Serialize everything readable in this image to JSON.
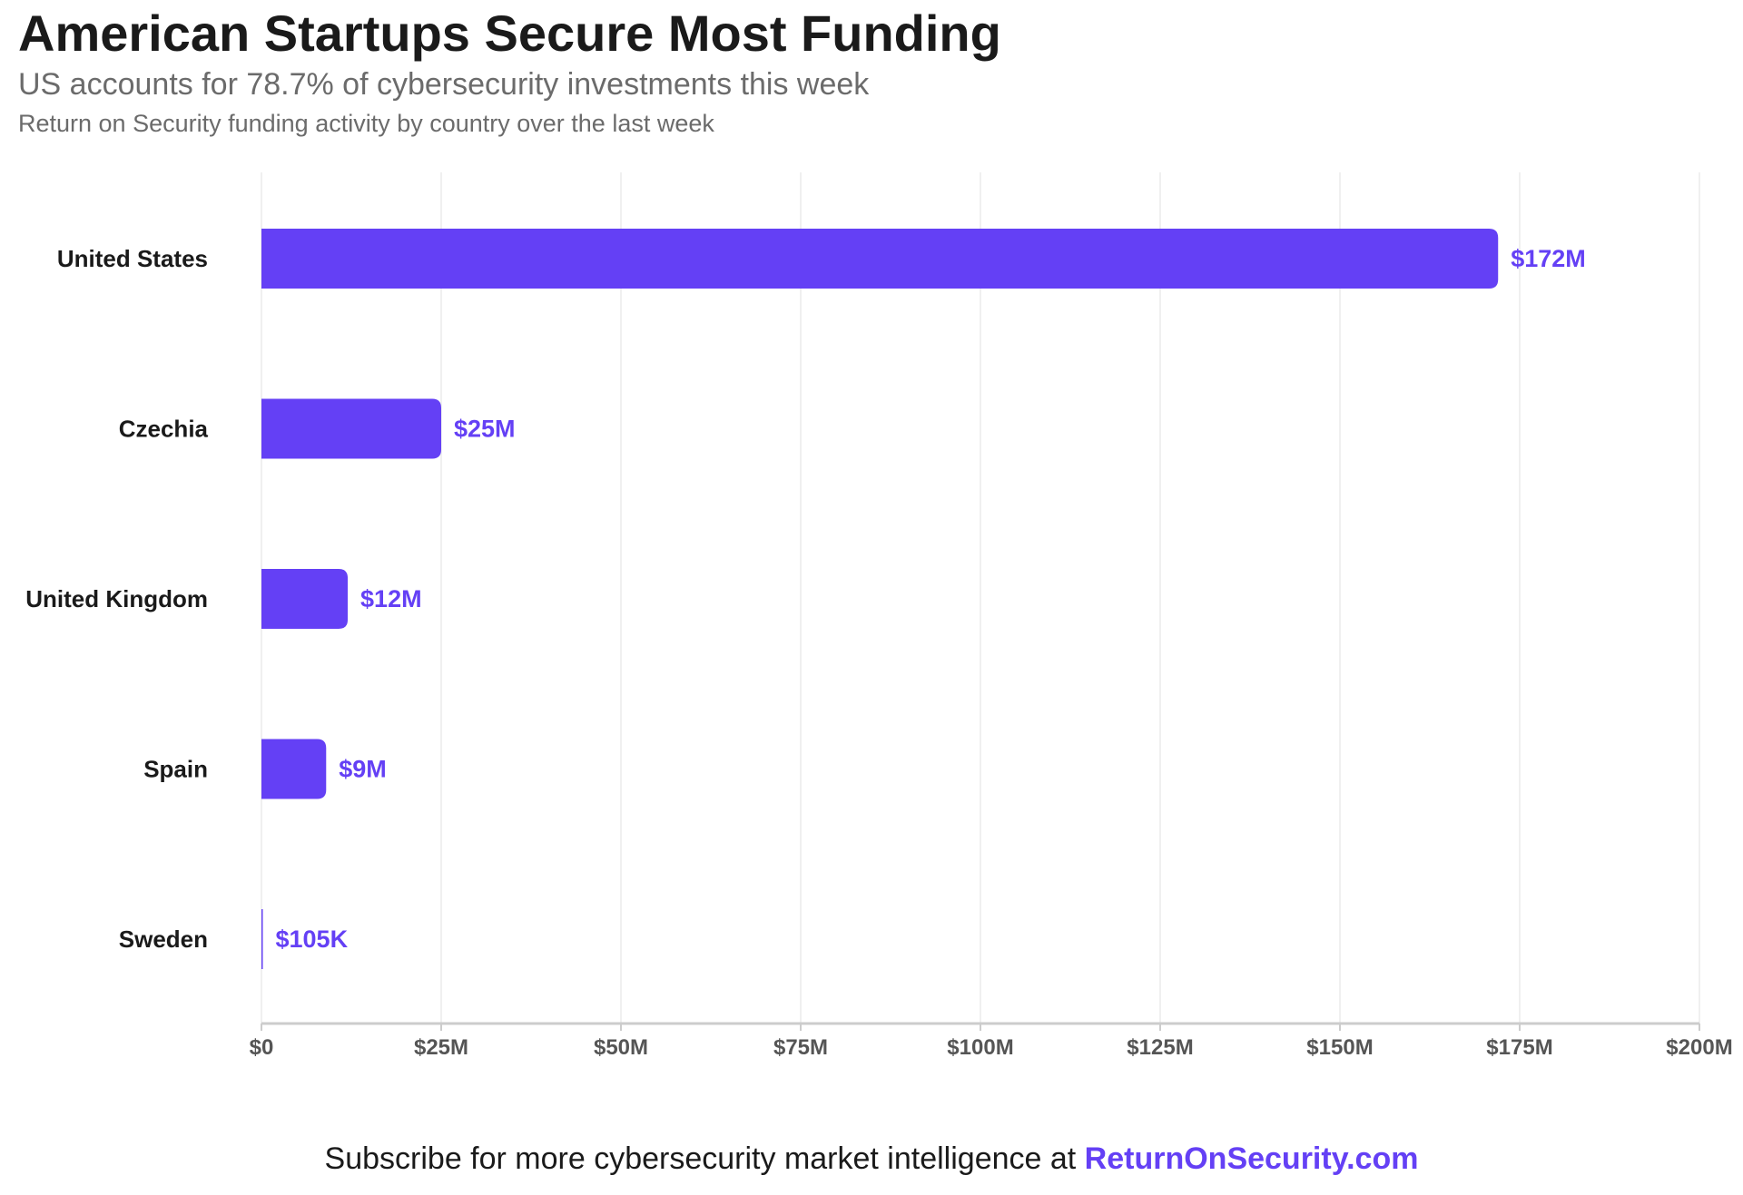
{
  "header": {
    "title": "American Startups Secure Most Funding",
    "subtitle": "US accounts for 78.7% of cybersecurity investments this week",
    "caption": "Return on Security funding activity by country over the last week"
  },
  "footer": {
    "text": "Subscribe for more cybersecurity market intelligence at ",
    "brand": "ReturnOnSecurity.com"
  },
  "colors": {
    "bar": "#6440f5",
    "value_label": "#6440f5",
    "category_label": "#1a1a1a",
    "tick_label": "#555555",
    "grid": "#ebebeb",
    "axis": "#cccccc"
  },
  "chart_data": {
    "type": "bar",
    "orientation": "horizontal",
    "title": "American Startups Secure Most Funding",
    "subtitle": "US accounts for 78.7% of cybersecurity investments this week",
    "caption": "Return on Security funding activity by country over the last week",
    "categories": [
      "United States",
      "Czechia",
      "United Kingdom",
      "Spain",
      "Sweden"
    ],
    "values": [
      172000000,
      25000000,
      12000000,
      9000000,
      105000
    ],
    "value_labels": [
      "$172M",
      "$25M",
      "$12M",
      "$9M",
      "$105K"
    ],
    "xlim": [
      0,
      200000000
    ],
    "x_ticks": [
      0,
      25000000,
      50000000,
      75000000,
      100000000,
      125000000,
      150000000,
      175000000,
      200000000
    ],
    "x_tick_labels": [
      "$0",
      "$25M",
      "$50M",
      "$75M",
      "$100M",
      "$125M",
      "$150M",
      "$175M",
      "$200M"
    ],
    "xlabel": "",
    "ylabel": "",
    "grid": true,
    "legend": "none"
  }
}
